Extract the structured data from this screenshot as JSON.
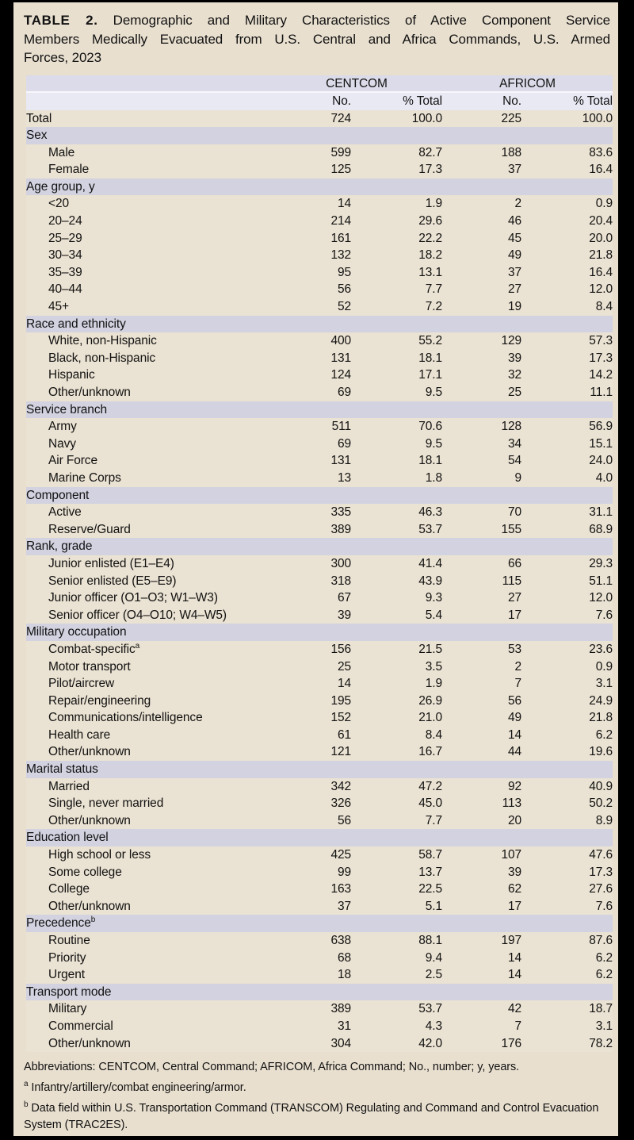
{
  "title": {
    "label": "TABLE 2.",
    "line1": "Demographic and Military Characteristics of Active Component Service",
    "line2": "Members Medically Evacuated from U.S. Central and Africa Commands, U.S. Armed",
    "line3": "Forces, 2023"
  },
  "table": {
    "column_groups": [
      {
        "label": "CENTCOM"
      },
      {
        "label": "AFRICOM"
      }
    ],
    "sub_headers": [
      "No.",
      "% Total",
      "No.",
      "% Total"
    ],
    "rows": [
      {
        "type": "data",
        "indent": false,
        "label": "Total",
        "values": [
          "724",
          "100.0",
          "225",
          "100.0"
        ]
      },
      {
        "type": "section",
        "label": "Sex"
      },
      {
        "type": "data",
        "indent": true,
        "label": "Male",
        "values": [
          "599",
          "82.7",
          "188",
          "83.6"
        ]
      },
      {
        "type": "data",
        "indent": true,
        "label": "Female",
        "values": [
          "125",
          "17.3",
          "37",
          "16.4"
        ]
      },
      {
        "type": "section",
        "label": "Age group, y"
      },
      {
        "type": "data",
        "indent": true,
        "label": "<20",
        "values": [
          "14",
          "1.9",
          "2",
          "0.9"
        ]
      },
      {
        "type": "data",
        "indent": true,
        "label": "20–24",
        "values": [
          "214",
          "29.6",
          "46",
          "20.4"
        ]
      },
      {
        "type": "data",
        "indent": true,
        "label": "25–29",
        "values": [
          "161",
          "22.2",
          "45",
          "20.0"
        ]
      },
      {
        "type": "data",
        "indent": true,
        "label": "30–34",
        "values": [
          "132",
          "18.2",
          "49",
          "21.8"
        ]
      },
      {
        "type": "data",
        "indent": true,
        "label": "35–39",
        "values": [
          "95",
          "13.1",
          "37",
          "16.4"
        ]
      },
      {
        "type": "data",
        "indent": true,
        "label": "40–44",
        "values": [
          "56",
          "7.7",
          "27",
          "12.0"
        ]
      },
      {
        "type": "data",
        "indent": true,
        "label": "45+",
        "values": [
          "52",
          "7.2",
          "19",
          "8.4"
        ]
      },
      {
        "type": "section",
        "label": "Race and ethnicity"
      },
      {
        "type": "data",
        "indent": true,
        "label": "White, non-Hispanic",
        "values": [
          "400",
          "55.2",
          "129",
          "57.3"
        ]
      },
      {
        "type": "data",
        "indent": true,
        "label": "Black, non-Hispanic",
        "values": [
          "131",
          "18.1",
          "39",
          "17.3"
        ]
      },
      {
        "type": "data",
        "indent": true,
        "label": "Hispanic",
        "values": [
          "124",
          "17.1",
          "32",
          "14.2"
        ]
      },
      {
        "type": "data",
        "indent": true,
        "label": "Other/unknown",
        "values": [
          "69",
          "9.5",
          "25",
          "11.1"
        ]
      },
      {
        "type": "section",
        "label": "Service branch"
      },
      {
        "type": "data",
        "indent": true,
        "label": "Army",
        "values": [
          "511",
          "70.6",
          "128",
          "56.9"
        ]
      },
      {
        "type": "data",
        "indent": true,
        "label": "Navy",
        "values": [
          "69",
          "9.5",
          "34",
          "15.1"
        ]
      },
      {
        "type": "data",
        "indent": true,
        "label": "Air Force",
        "values": [
          "131",
          "18.1",
          "54",
          "24.0"
        ]
      },
      {
        "type": "data",
        "indent": true,
        "label": "Marine Corps",
        "values": [
          "13",
          "1.8",
          "9",
          "4.0"
        ]
      },
      {
        "type": "section",
        "label": "Component"
      },
      {
        "type": "data",
        "indent": true,
        "label": "Active",
        "values": [
          "335",
          "46.3",
          "70",
          "31.1"
        ]
      },
      {
        "type": "data",
        "indent": true,
        "label": "Reserve/Guard",
        "values": [
          "389",
          "53.7",
          "155",
          "68.9"
        ]
      },
      {
        "type": "section",
        "label": "Rank, grade"
      },
      {
        "type": "data",
        "indent": true,
        "label": "Junior enlisted (E1–E4)",
        "values": [
          "300",
          "41.4",
          "66",
          "29.3"
        ]
      },
      {
        "type": "data",
        "indent": true,
        "label": "Senior enlisted (E5–E9)",
        "values": [
          "318",
          "43.9",
          "115",
          "51.1"
        ]
      },
      {
        "type": "data",
        "indent": true,
        "label": "Junior officer (O1–O3; W1–W3)",
        "values": [
          "67",
          "9.3",
          "27",
          "12.0"
        ]
      },
      {
        "type": "data",
        "indent": true,
        "label": "Senior officer (O4–O10; W4–W5)",
        "values": [
          "39",
          "5.4",
          "17",
          "7.6"
        ]
      },
      {
        "type": "section",
        "label": "Military occupation"
      },
      {
        "type": "data",
        "indent": true,
        "label": "Combat-specific",
        "sup": "a",
        "values": [
          "156",
          "21.5",
          "53",
          "23.6"
        ]
      },
      {
        "type": "data",
        "indent": true,
        "label": "Motor transport",
        "values": [
          "25",
          "3.5",
          "2",
          "0.9"
        ]
      },
      {
        "type": "data",
        "indent": true,
        "label": "Pilot/aircrew",
        "values": [
          "14",
          "1.9",
          "7",
          "3.1"
        ]
      },
      {
        "type": "data",
        "indent": true,
        "label": "Repair/engineering",
        "values": [
          "195",
          "26.9",
          "56",
          "24.9"
        ]
      },
      {
        "type": "data",
        "indent": true,
        "label": "Communications/intelligence",
        "values": [
          "152",
          "21.0",
          "49",
          "21.8"
        ]
      },
      {
        "type": "data",
        "indent": true,
        "label": "Health care",
        "values": [
          "61",
          "8.4",
          "14",
          "6.2"
        ]
      },
      {
        "type": "data",
        "indent": true,
        "label": "Other/unknown",
        "values": [
          "121",
          "16.7",
          "44",
          "19.6"
        ]
      },
      {
        "type": "section",
        "label": "Marital status"
      },
      {
        "type": "data",
        "indent": true,
        "label": "Married",
        "values": [
          "342",
          "47.2",
          "92",
          "40.9"
        ]
      },
      {
        "type": "data",
        "indent": true,
        "label": "Single, never married",
        "values": [
          "326",
          "45.0",
          "113",
          "50.2"
        ]
      },
      {
        "type": "data",
        "indent": true,
        "label": "Other/unknown",
        "values": [
          "56",
          "7.7",
          "20",
          "8.9"
        ]
      },
      {
        "type": "section",
        "label": "Education level"
      },
      {
        "type": "data",
        "indent": true,
        "label": "High school or less",
        "values": [
          "425",
          "58.7",
          "107",
          "47.6"
        ]
      },
      {
        "type": "data",
        "indent": true,
        "label": "Some college",
        "values": [
          "99",
          "13.7",
          "39",
          "17.3"
        ]
      },
      {
        "type": "data",
        "indent": true,
        "label": "College",
        "values": [
          "163",
          "22.5",
          "62",
          "27.6"
        ]
      },
      {
        "type": "data",
        "indent": true,
        "label": "Other/unknown",
        "values": [
          "37",
          "5.1",
          "17",
          "7.6"
        ]
      },
      {
        "type": "section",
        "label": "Precedence",
        "sup": "b"
      },
      {
        "type": "data",
        "indent": true,
        "label": "Routine",
        "values": [
          "638",
          "88.1",
          "197",
          "87.6"
        ]
      },
      {
        "type": "data",
        "indent": true,
        "label": "Priority",
        "values": [
          "68",
          "9.4",
          "14",
          "6.2"
        ]
      },
      {
        "type": "data",
        "indent": true,
        "label": "Urgent",
        "values": [
          "18",
          "2.5",
          "14",
          "6.2"
        ]
      },
      {
        "type": "section",
        "label": "Transport mode"
      },
      {
        "type": "data",
        "indent": true,
        "label": "Military",
        "values": [
          "389",
          "53.7",
          "42",
          "18.7"
        ]
      },
      {
        "type": "data",
        "indent": true,
        "label": "Commercial",
        "values": [
          "31",
          "4.3",
          "7",
          "3.1"
        ]
      },
      {
        "type": "data",
        "indent": true,
        "label": "Other/unknown",
        "values": [
          "304",
          "42.0",
          "176",
          "78.2"
        ]
      }
    ]
  },
  "footnotes": [
    {
      "sup": "",
      "text": "Abbreviations: CENTCOM, Central Command; AFRICOM, Africa Command; No., number; y, years."
    },
    {
      "sup": "a",
      "text": "Infantry/artillery/combat engineering/armor."
    },
    {
      "sup": "b",
      "text": "Data field within U.S. Transportation Command (TRANSCOM) Regulating and Command and Control Evacuation System (TRAC2ES)."
    }
  ],
  "colors": {
    "frame": "#000000",
    "page_background": "#e8dfcf",
    "data_row_background": "#eae2d2",
    "section_row_background": "#d2d2e0",
    "header_group_background": "#dbdbe9",
    "header_sub_background": "#e9e9f4",
    "text": "#121212"
  }
}
